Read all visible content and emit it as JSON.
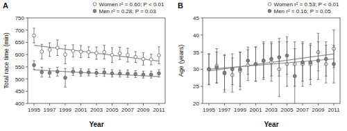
{
  "chart_data": [
    {
      "type": "scatter",
      "title": "A",
      "xlabel": "Year",
      "ylabel": "Total race time (min)",
      "x": [
        1995,
        1996,
        1997,
        1998,
        1999,
        2000,
        2001,
        2002,
        2003,
        2004,
        2005,
        2006,
        2007,
        2008,
        2009,
        2010,
        2011
      ],
      "xlim": [
        1994.2,
        2011.8
      ],
      "xticks": [
        1995,
        1997,
        1999,
        2001,
        2003,
        2005,
        2007,
        2009,
        2011
      ],
      "ylim": [
        400,
        750
      ],
      "yticks": [
        400,
        450,
        500,
        550,
        600,
        650,
        700,
        750
      ],
      "grid": false,
      "legend": "top",
      "marker": "circle",
      "series": [
        {
          "name": "Women r² = 0.60; P < 0.01",
          "color": "#ffffff",
          "values": [
            678,
            612,
            620,
            628,
            600,
            615,
            612,
            610,
            606,
            610,
            598,
            605,
            598,
            590,
            582,
            580,
            597
          ],
          "errors": [
            30,
            30,
            28,
            32,
            38,
            25,
            25,
            22,
            25,
            28,
            30,
            25,
            28,
            22,
            25,
            22,
            35
          ],
          "trend": {
            "x": [
              1995,
              2011
            ],
            "values": [
              638,
              573
            ]
          }
        },
        {
          "name": "Men r² = 0.28; P = 0.03",
          "color": "#808080",
          "values": [
            557,
            528,
            525,
            530,
            505,
            530,
            527,
            527,
            525,
            527,
            523,
            522,
            522,
            520,
            518,
            518,
            523
          ],
          "errors": [
            18,
            20,
            18,
            18,
            38,
            15,
            15,
            14,
            15,
            16,
            15,
            14,
            15,
            14,
            14,
            14,
            15
          ],
          "trend": {
            "x": [
              1995,
              2011
            ],
            "values": [
              537,
              510
            ]
          }
        }
      ]
    },
    {
      "type": "scatter",
      "title": "B",
      "xlabel": "Year",
      "ylabel": "Age (years)",
      "x": [
        1995,
        1996,
        1997,
        1998,
        1999,
        2000,
        2001,
        2002,
        2003,
        2004,
        2005,
        2006,
        2007,
        2008,
        2009,
        2010,
        2011
      ],
      "xlim": [
        1994.2,
        2011.8
      ],
      "xticks": [
        1995,
        1997,
        1999,
        2001,
        2003,
        2005,
        2007,
        2009,
        2011
      ],
      "ylim": [
        20,
        45
      ],
      "yticks": [
        20,
        25,
        30,
        35,
        40,
        45
      ],
      "grid": false,
      "legend": "top",
      "marker": "circle",
      "series": [
        {
          "name": "Women r² = 0.53; P < 0.01",
          "color": "#ffffff",
          "values": [
            30.0,
            31.0,
            28.8,
            28.3,
            29.5,
            31.2,
            31.5,
            32.5,
            32.0,
            30.0,
            31.5,
            31.5,
            31.5,
            31.5,
            35.0,
            31.5,
            36.0
          ],
          "errors": [
            4.5,
            5.0,
            5.5,
            5.0,
            5.5,
            4.5,
            5.0,
            5.5,
            5.5,
            8.0,
            6.5,
            6.5,
            6.5,
            6.0,
            5.5,
            5.5,
            5.5
          ],
          "trend": {
            "x": [
              1995,
              2011
            ],
            "values": [
              29.5,
              34.5
            ]
          }
        },
        {
          "name": "Men r² = 0.16; P = 0.05",
          "color": "#808080",
          "values": [
            30.0,
            30.5,
            29.0,
            30.0,
            30.0,
            32.5,
            31.5,
            32.5,
            33.0,
            33.5,
            34.0,
            28.0,
            32.0,
            32.0,
            32.5,
            33.0,
            31.5
          ],
          "errors": [
            4.5,
            4.5,
            5.0,
            4.5,
            5.0,
            4.0,
            5.0,
            5.0,
            5.0,
            5.5,
            5.5,
            8.0,
            5.5,
            5.0,
            5.5,
            5.0,
            5.5
          ],
          "trend": {
            "x": [
              1995,
              2011
            ],
            "values": [
              30.0,
              33.0
            ]
          }
        }
      ]
    }
  ]
}
